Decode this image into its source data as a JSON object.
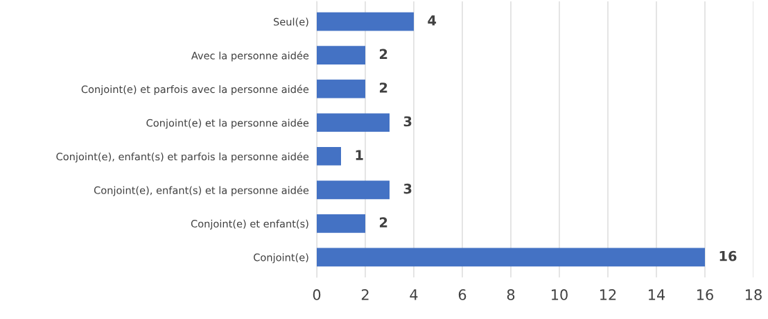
{
  "chart_data": {
    "type": "bar",
    "orientation": "horizontal",
    "categories": [
      "Seul(e)",
      "Avec la personne aidée",
      "Conjoint(e) et parfois avec la personne aidée",
      "Conjoint(e) et la personne aidée",
      "Conjoint(e), enfant(s) et parfois la personne aidée",
      "Conjoint(e), enfant(s) et la personne aidée",
      "Conjoint(e) et enfant(s)",
      "Conjoint(e)"
    ],
    "values": [
      4,
      2,
      2,
      3,
      1,
      3,
      2,
      16
    ],
    "color": "#4472c4",
    "xlim": [
      0,
      18
    ],
    "xticks": [
      0,
      2,
      4,
      6,
      8,
      10,
      12,
      14,
      16,
      18
    ],
    "grid": "x",
    "data_labels": true
  }
}
